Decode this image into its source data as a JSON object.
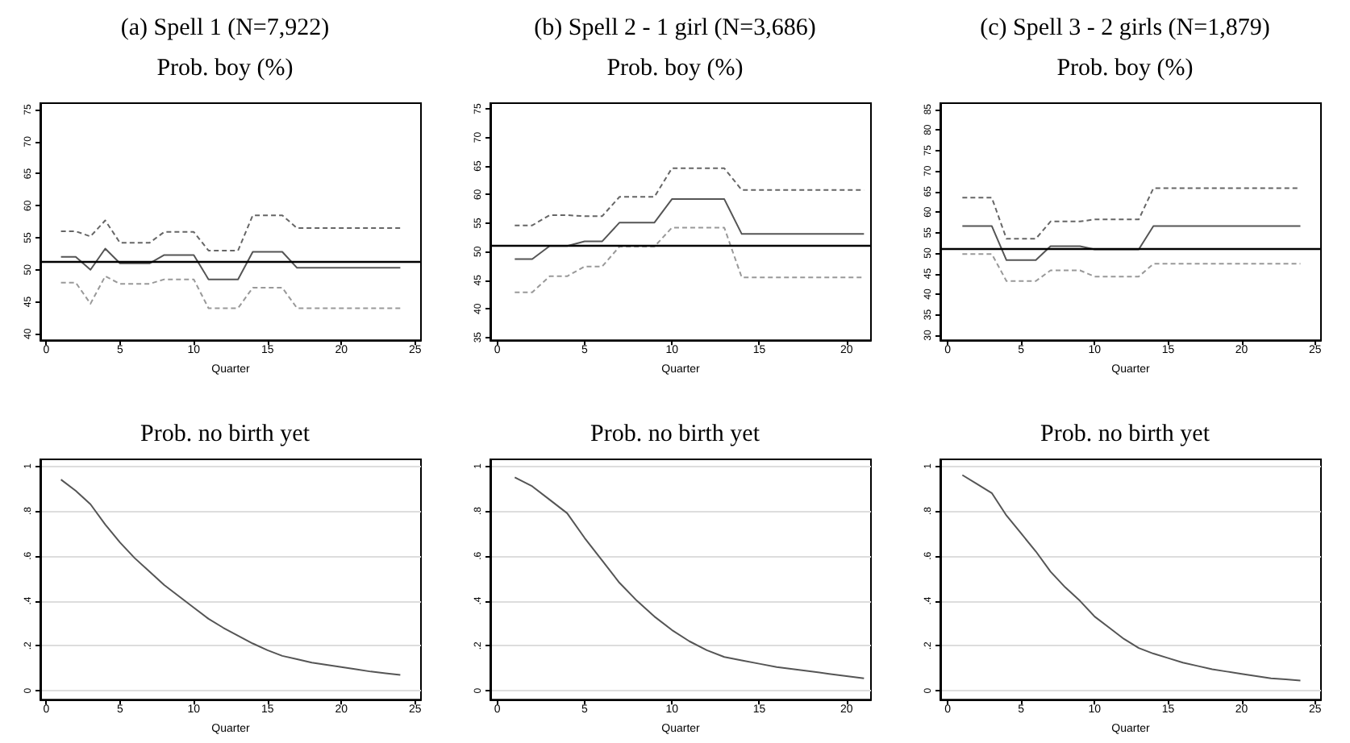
{
  "chart_data": [
    {
      "type": "line",
      "title": "(a) Spell 1 (N=7,922)",
      "subtitle": "Prob. boy (%)",
      "xlabel": "Quarter",
      "marker": "none",
      "grid": false,
      "x": [
        1,
        2,
        3,
        4,
        5,
        6,
        7,
        8,
        9,
        10,
        11,
        12,
        13,
        14,
        15,
        16,
        17,
        18,
        19,
        20,
        21,
        22,
        23,
        24
      ],
      "series": [
        {
          "color": "#555555",
          "line_style": "solid",
          "values": [
            52,
            52,
            50,
            53.3,
            51,
            51,
            51,
            52.3,
            52.3,
            52.3,
            48.5,
            48.5,
            48.5,
            52.8,
            52.8,
            52.8,
            50.3,
            50.3,
            50.3,
            50.3,
            50.3,
            50.3,
            50.3,
            50.3
          ]
        },
        {
          "color": "#666666",
          "line_style": "dashed",
          "values": [
            56,
            56,
            55.2,
            57.7,
            54.2,
            54.2,
            54.2,
            55.9,
            55.9,
            55.9,
            53,
            53,
            53,
            58.5,
            58.5,
            58.5,
            56.5,
            56.5,
            56.5,
            56.5,
            56.5,
            56.5,
            56.5,
            56.5
          ]
        },
        {
          "color": "#999999",
          "line_style": "dashed",
          "values": [
            48,
            48,
            44.7,
            49,
            47.8,
            47.8,
            47.8,
            48.5,
            48.5,
            48.5,
            44,
            44,
            44,
            47.2,
            47.2,
            47.2,
            44,
            44,
            44,
            44,
            44,
            44,
            44,
            44
          ]
        }
      ],
      "ref_lines": [
        {
          "axis": "y",
          "value": 51.2
        }
      ],
      "xlim": [
        -0.4,
        25.4
      ],
      "xticks": [
        0,
        5,
        10,
        15,
        20,
        25
      ],
      "ylim": [
        39,
        76
      ],
      "yticks": [
        40,
        45,
        50,
        55,
        60,
        65,
        70,
        75
      ]
    },
    {
      "type": "line",
      "title": "(b) Spell 2 - 1 girl (N=3,686)",
      "subtitle": "Prob. boy (%)",
      "xlabel": "Quarter",
      "marker": "none",
      "grid": false,
      "x": [
        1,
        2,
        3,
        4,
        5,
        6,
        7,
        8,
        9,
        10,
        11,
        12,
        13,
        14,
        15,
        16,
        17,
        18,
        19,
        20,
        21
      ],
      "series": [
        {
          "color": "#555555",
          "line_style": "solid",
          "values": [
            48.7,
            48.7,
            51,
            51,
            51.8,
            51.8,
            55.1,
            55.1,
            55.1,
            59.2,
            59.2,
            59.2,
            59.2,
            53.1,
            53.1,
            53.1,
            53.1,
            53.1,
            53.1,
            53.1,
            53.1
          ]
        },
        {
          "color": "#666666",
          "line_style": "dashed",
          "values": [
            54.6,
            54.6,
            56.4,
            56.4,
            56.2,
            56.2,
            59.6,
            59.6,
            59.6,
            64.6,
            64.6,
            64.6,
            64.6,
            60.8,
            60.8,
            60.8,
            60.8,
            60.8,
            60.8,
            60.8,
            60.8
          ]
        },
        {
          "color": "#999999",
          "line_style": "dashed",
          "values": [
            42.9,
            42.9,
            45.7,
            45.7,
            47.4,
            47.4,
            50.9,
            50.9,
            50.9,
            54.2,
            54.2,
            54.2,
            54.2,
            45.5,
            45.5,
            45.5,
            45.5,
            45.5,
            45.5,
            45.5,
            45.5
          ]
        }
      ],
      "ref_lines": [
        {
          "axis": "y",
          "value": 51.2
        }
      ],
      "xlim": [
        -0.4,
        21.4
      ],
      "xticks": [
        0,
        5,
        10,
        15,
        20
      ],
      "ylim": [
        34.5,
        76
      ],
      "yticks": [
        35,
        40,
        45,
        50,
        55,
        60,
        65,
        70,
        75
      ]
    },
    {
      "type": "line",
      "title": "(c) Spell 3 - 2 girls (N=1,879)",
      "subtitle": "Prob. boy (%)",
      "xlabel": "Quarter",
      "marker": "none",
      "grid": false,
      "x": [
        1,
        2,
        3,
        4,
        5,
        6,
        7,
        8,
        9,
        10,
        11,
        12,
        13,
        14,
        15,
        16,
        17,
        18,
        19,
        20,
        21,
        22,
        23,
        24
      ],
      "series": [
        {
          "color": "#555555",
          "line_style": "solid",
          "values": [
            56.6,
            56.6,
            56.6,
            48.3,
            48.3,
            48.3,
            51.7,
            51.7,
            51.7,
            50.9,
            50.9,
            50.9,
            50.9,
            56.6,
            56.6,
            56.6,
            56.6,
            56.6,
            56.6,
            56.6,
            56.6,
            56.6,
            56.6,
            56.6
          ]
        },
        {
          "color": "#666666",
          "line_style": "dashed",
          "values": [
            63.5,
            63.5,
            63.5,
            53.5,
            53.5,
            53.5,
            57.7,
            57.7,
            57.7,
            58.2,
            58.2,
            58.2,
            58.2,
            65.8,
            65.8,
            65.8,
            65.8,
            65.8,
            65.8,
            65.8,
            65.8,
            65.8,
            65.8,
            65.8
          ]
        },
        {
          "color": "#999999",
          "line_style": "dashed",
          "values": [
            49.8,
            49.8,
            49.8,
            43.2,
            43.2,
            43.2,
            45.8,
            45.8,
            45.8,
            44.3,
            44.3,
            44.3,
            44.3,
            47.4,
            47.4,
            47.4,
            47.4,
            47.4,
            47.4,
            47.4,
            47.4,
            47.4,
            47.4,
            47.4
          ]
        }
      ],
      "ref_lines": [
        {
          "axis": "y",
          "value": 51.2
        }
      ],
      "xlim": [
        -0.5,
        25.4
      ],
      "xticks": [
        0,
        5,
        10,
        15,
        20,
        25
      ],
      "ylim": [
        28.8,
        86.5
      ],
      "yticks": [
        30,
        35,
        40,
        45,
        50,
        55,
        60,
        65,
        70,
        75,
        80,
        85
      ]
    },
    {
      "type": "line",
      "title": "Prob. no birth yet",
      "xlabel": "Quarter",
      "marker": "none",
      "grid": "y",
      "x": [
        1,
        2,
        3,
        4,
        5,
        6,
        7,
        8,
        9,
        10,
        11,
        12,
        13,
        14,
        15,
        16,
        17,
        18,
        19,
        20,
        21,
        22,
        23,
        24
      ],
      "series": [
        {
          "color": "#555555",
          "line_style": "solid",
          "values": [
            0.94,
            0.89,
            0.83,
            0.74,
            0.66,
            0.59,
            0.53,
            0.47,
            0.42,
            0.37,
            0.32,
            0.28,
            0.245,
            0.21,
            0.18,
            0.155,
            0.14,
            0.125,
            0.115,
            0.105,
            0.095,
            0.085,
            0.077,
            0.07
          ]
        }
      ],
      "xlim": [
        -0.4,
        25.4
      ],
      "xticks": [
        0,
        5,
        10,
        15,
        20,
        25
      ],
      "ylim": [
        -0.04,
        1.03
      ],
      "yticks": [
        0,
        {
          "value": 0.2,
          "label": ".2"
        },
        {
          "value": 0.4,
          "label": ".4"
        },
        {
          "value": 0.6,
          "label": ".6"
        },
        {
          "value": 0.8,
          "label": ".8"
        },
        1
      ]
    },
    {
      "type": "line",
      "title": "Prob. no birth yet",
      "xlabel": "Quarter",
      "marker": "none",
      "grid": "y",
      "x": [
        1,
        2,
        3,
        4,
        5,
        6,
        7,
        8,
        9,
        10,
        11,
        12,
        13,
        14,
        15,
        16,
        17,
        18,
        19,
        20,
        21
      ],
      "series": [
        {
          "color": "#555555",
          "line_style": "solid",
          "values": [
            0.95,
            0.91,
            0.85,
            0.79,
            0.68,
            0.58,
            0.48,
            0.4,
            0.33,
            0.27,
            0.22,
            0.18,
            0.15,
            0.135,
            0.12,
            0.105,
            0.095,
            0.085,
            0.075,
            0.065,
            0.055
          ]
        }
      ],
      "xlim": [
        -0.4,
        21.4
      ],
      "xticks": [
        0,
        5,
        10,
        15,
        20
      ],
      "ylim": [
        -0.04,
        1.03
      ],
      "yticks": [
        0,
        {
          "value": 0.2,
          "label": ".2"
        },
        {
          "value": 0.4,
          "label": ".4"
        },
        {
          "value": 0.6,
          "label": ".6"
        },
        {
          "value": 0.8,
          "label": ".8"
        },
        1
      ]
    },
    {
      "type": "line",
      "title": "Prob. no birth yet",
      "xlabel": "Quarter",
      "marker": "none",
      "grid": "y",
      "x": [
        1,
        2,
        3,
        4,
        5,
        6,
        7,
        8,
        9,
        10,
        11,
        12,
        13,
        14,
        15,
        16,
        17,
        18,
        19,
        20,
        21,
        22,
        23,
        24
      ],
      "series": [
        {
          "color": "#555555",
          "line_style": "solid",
          "values": [
            0.96,
            0.92,
            0.88,
            0.78,
            0.7,
            0.62,
            0.53,
            0.46,
            0.4,
            0.33,
            0.28,
            0.23,
            0.19,
            0.165,
            0.145,
            0.125,
            0.11,
            0.095,
            0.085,
            0.075,
            0.065,
            0.055,
            0.05,
            0.045
          ]
        }
      ],
      "xlim": [
        -0.5,
        25.4
      ],
      "xticks": [
        0,
        5,
        10,
        15,
        20,
        25
      ],
      "ylim": [
        -0.04,
        1.03
      ],
      "yticks": [
        0,
        {
          "value": 0.2,
          "label": ".2"
        },
        {
          "value": 0.4,
          "label": ".4"
        },
        {
          "value": 0.6,
          "label": ".6"
        },
        {
          "value": 0.8,
          "label": ".8"
        },
        1
      ]
    }
  ]
}
